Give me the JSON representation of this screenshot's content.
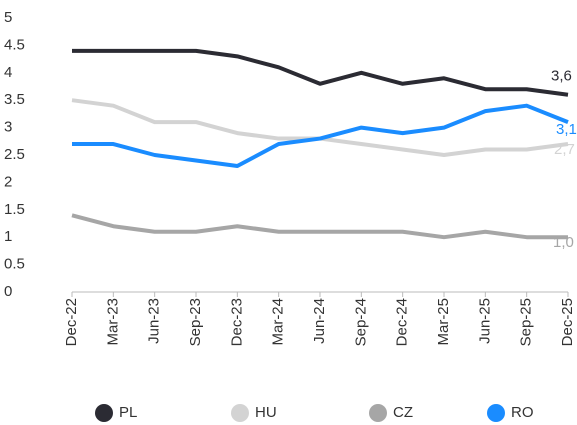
{
  "chart_data": {
    "type": "line",
    "categories": [
      "Dec-22",
      "Mar-23",
      "Jun-23",
      "Sep-23",
      "Dec-23",
      "Mar-24",
      "Jun-24",
      "Sep-24",
      "Dec-24",
      "Mar-25",
      "Jun-25",
      "Sep-25",
      "Dec-25"
    ],
    "series": [
      {
        "name": "PL",
        "color": "#2b2b33",
        "values": [
          4.4,
          4.4,
          4.4,
          4.4,
          4.3,
          4.1,
          3.8,
          4.0,
          3.8,
          3.9,
          3.7,
          3.7,
          3.6
        ],
        "value_labels": [
          null,
          null,
          null,
          null,
          null,
          null,
          null,
          null,
          null,
          null,
          null,
          null,
          "3,6"
        ]
      },
      {
        "name": "HU",
        "color": "#d3d3d3",
        "values": [
          3.5,
          3.4,
          3.1,
          3.1,
          2.9,
          2.8,
          2.8,
          2.7,
          2.6,
          2.5,
          2.6,
          2.6,
          2.7
        ],
        "value_labels": [
          null,
          null,
          null,
          null,
          null,
          null,
          null,
          null,
          null,
          null,
          null,
          null,
          "2,7"
        ]
      },
      {
        "name": "CZ",
        "color": "#a6a6a6",
        "values": [
          1.4,
          1.2,
          1.1,
          1.1,
          1.2,
          1.1,
          1.1,
          1.1,
          1.1,
          1.0,
          1.1,
          1.0,
          1.0
        ],
        "value_labels": [
          null,
          null,
          null,
          null,
          null,
          null,
          null,
          null,
          null,
          null,
          null,
          null,
          "1,0"
        ]
      },
      {
        "name": "RO",
        "color": "#1a8cff",
        "values": [
          2.7,
          2.7,
          2.5,
          2.4,
          2.3,
          2.7,
          2.8,
          3.0,
          2.9,
          3.0,
          3.3,
          3.4,
          3.1
        ],
        "value_labels": [
          null,
          null,
          null,
          null,
          null,
          null,
          null,
          null,
          null,
          null,
          null,
          null,
          "3,1"
        ]
      }
    ],
    "ylim": [
      0,
      5
    ],
    "yticks": [
      0,
      0.5,
      1,
      1.5,
      2,
      2.5,
      3,
      3.5,
      4,
      4.5,
      5
    ],
    "grid": false
  }
}
